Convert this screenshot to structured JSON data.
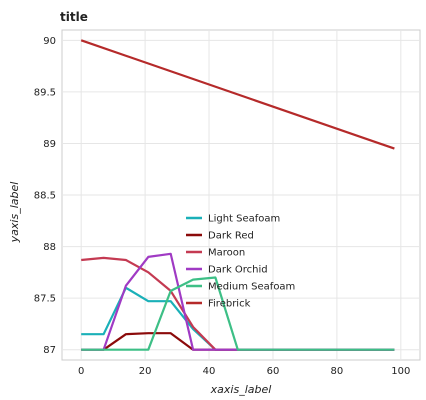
{
  "chart_data": {
    "type": "line",
    "title": "title",
    "xlabel": "xaxis_label",
    "ylabel": "yaxis_label",
    "xlim": [
      -6,
      106
    ],
    "ylim": [
      86.9,
      90.1
    ],
    "xticks": [
      0,
      20,
      40,
      60,
      80,
      100
    ],
    "yticks": [
      87,
      87.5,
      88,
      88.5,
      89,
      89.5,
      90
    ],
    "grid": true,
    "legend_position": "center",
    "series": [
      {
        "name": "Light Seafoam",
        "color": "#1ab0b8",
        "x": [
          0,
          7,
          14,
          21,
          28,
          35,
          42,
          49,
          56,
          63,
          70,
          77,
          84,
          91,
          98
        ],
        "y": [
          87.15,
          87.15,
          87.6,
          87.47,
          87.47,
          87.2,
          87.0,
          87.0,
          87.0,
          87.0,
          87.0,
          87.0,
          87.0,
          87.0,
          87.0
        ]
      },
      {
        "name": "Dark Red",
        "color": "#8b0a0a",
        "x": [
          0,
          7,
          14,
          21,
          28,
          35,
          42,
          49,
          56,
          63,
          70,
          77,
          84,
          91,
          98
        ],
        "y": [
          87.0,
          87.0,
          87.15,
          87.16,
          87.16,
          87.0,
          87.0,
          87.0,
          87.0,
          87.0,
          87.0,
          87.0,
          87.0,
          87.0,
          87.0
        ]
      },
      {
        "name": "Maroon",
        "color": "#c43a52",
        "x": [
          0,
          7,
          14,
          21,
          28,
          35,
          42,
          49,
          56,
          63,
          70,
          77,
          84,
          91,
          98
        ],
        "y": [
          87.87,
          87.89,
          87.87,
          87.75,
          87.57,
          87.22,
          87.0,
          87.0,
          87.0,
          87.0,
          87.0,
          87.0,
          87.0,
          87.0,
          87.0
        ]
      },
      {
        "name": "Dark Orchid",
        "color": "#a03ac4",
        "x": [
          0,
          7,
          14,
          21,
          28,
          35,
          42,
          49,
          56,
          63,
          70,
          77,
          84,
          91,
          98
        ],
        "y": [
          87.0,
          87.0,
          87.62,
          87.9,
          87.93,
          87.0,
          87.0,
          87.0,
          87.0,
          87.0,
          87.0,
          87.0,
          87.0,
          87.0,
          87.0
        ]
      },
      {
        "name": "Medium Seafoam",
        "color": "#3dbf86",
        "x": [
          0,
          7,
          14,
          21,
          28,
          35,
          42,
          49,
          56,
          63,
          70,
          77,
          84,
          91,
          98
        ],
        "y": [
          87.0,
          87.0,
          87.0,
          87.0,
          87.57,
          87.68,
          87.7,
          87.0,
          87.0,
          87.0,
          87.0,
          87.0,
          87.0,
          87.0,
          87.0
        ]
      },
      {
        "name": "Firebrick",
        "color": "#b52a2a",
        "x": [
          0,
          98
        ],
        "y": [
          90.0,
          88.95
        ]
      }
    ]
  }
}
